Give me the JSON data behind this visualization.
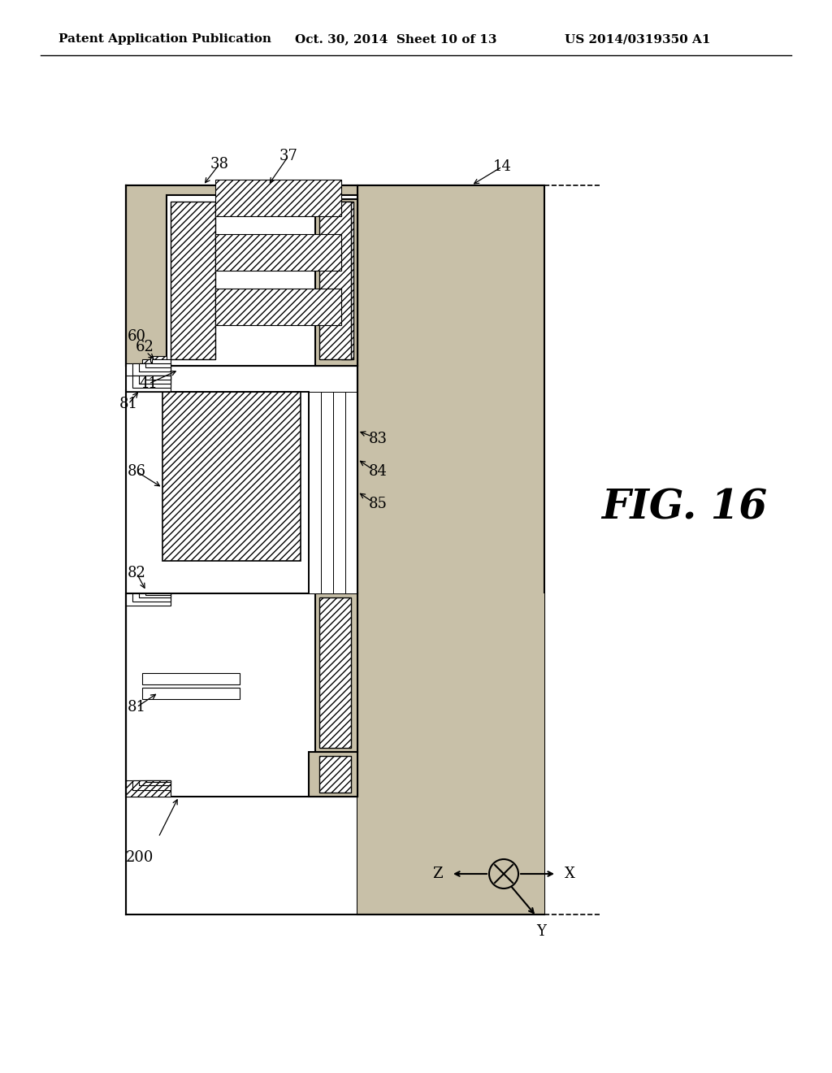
{
  "header_left": "Patent Application Publication",
  "header_center": "Oct. 30, 2014  Sheet 10 of 13",
  "header_right": "US 2014/0319350 A1",
  "figure_label": "FIG. 16",
  "bg_color": "#ffffff",
  "substrate_color": "#c8c0a8",
  "sandy_color": "#d0c8b0",
  "hatch_pattern": "////",
  "layer_gray": "#c0c0c0"
}
